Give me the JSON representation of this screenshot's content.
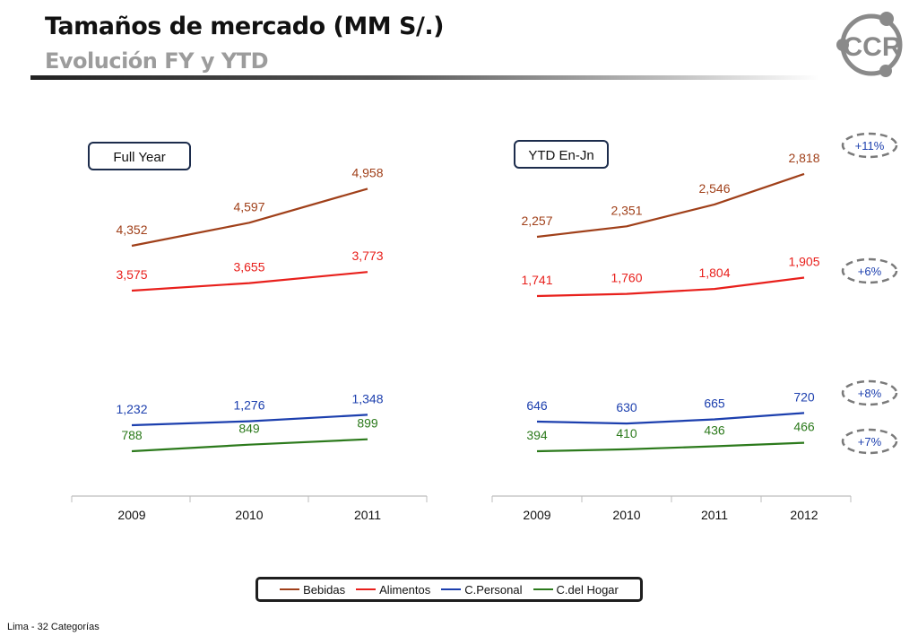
{
  "header": {
    "title": "Tamaños de mercado (MM S/.)",
    "subtitle": "Evolución FY y YTD"
  },
  "logo": {
    "text": "CCR",
    "icon": "ccr-logo-icon",
    "color": "#8a8a8a"
  },
  "footnote": "Lima - 32 Categorías",
  "chart_data": [
    {
      "type": "line",
      "title": "Full Year",
      "categories": [
        "2009",
        "2010",
        "2011"
      ],
      "series": [
        {
          "name": "Bebidas",
          "color": "#a0401a",
          "values": [
            4352,
            4597,
            4958
          ],
          "labels": [
            "4,352",
            "4,597",
            "4,958"
          ]
        },
        {
          "name": "Alimentos",
          "color": "#e8201c",
          "values": [
            3575,
            3655,
            3773
          ],
          "labels": [
            "3,575",
            "3,655",
            "3,773"
          ]
        },
        {
          "name": "C.Personal",
          "color": "#1c3fae",
          "values": [
            1232,
            1276,
            1348
          ],
          "labels": [
            "1,232",
            "1,276",
            "1,348"
          ]
        },
        {
          "name": "C.del Hogar",
          "color": "#2c7a1c",
          "values": [
            788,
            849,
            899
          ],
          "labels": [
            "788",
            "849",
            "899"
          ]
        }
      ],
      "grid": false,
      "legend": "bottom"
    },
    {
      "type": "line",
      "title": "YTD En-Jn",
      "categories": [
        "2009",
        "2010",
        "2011",
        "2012"
      ],
      "series": [
        {
          "name": "Bebidas",
          "color": "#a0401a",
          "values": [
            2257,
            2351,
            2546,
            2818
          ],
          "labels": [
            "2,257",
            "2,351",
            "2,546",
            "2,818"
          ]
        },
        {
          "name": "Alimentos",
          "color": "#e8201c",
          "values": [
            1741,
            1760,
            1804,
            1905
          ],
          "labels": [
            "1,741",
            "1,760",
            "1,804",
            "1,905"
          ]
        },
        {
          "name": "C.Personal",
          "color": "#1c3fae",
          "values": [
            646,
            630,
            665,
            720
          ],
          "labels": [
            "646",
            "630",
            "665",
            "720"
          ]
        },
        {
          "name": "C.del Hogar",
          "color": "#2c7a1c",
          "values": [
            394,
            410,
            436,
            466
          ],
          "labels": [
            "394",
            "410",
            "436",
            "466"
          ]
        }
      ],
      "growth_badges": [
        {
          "series": "Bebidas",
          "label": "+11%"
        },
        {
          "series": "Alimentos",
          "label": "+6%"
        },
        {
          "series": "C.Personal",
          "label": "+8%"
        },
        {
          "series": "C.del Hogar",
          "label": "+7%"
        }
      ],
      "grid": false,
      "legend": "bottom"
    }
  ],
  "legend": [
    {
      "name": "Bebidas",
      "color": "#a0401a"
    },
    {
      "name": "Alimentos",
      "color": "#e8201c"
    },
    {
      "name": "C.Personal",
      "color": "#1c3fae"
    },
    {
      "name": "C.del Hogar",
      "color": "#2c7a1c"
    }
  ]
}
